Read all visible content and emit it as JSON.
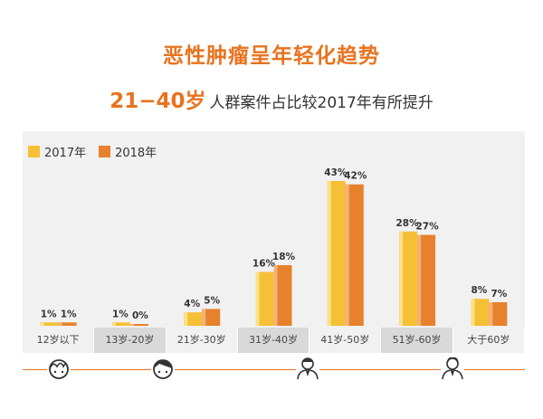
{
  "title": "恶性肿瘤呈年轻化趋势",
  "subtitle": {
    "highlight": "21−40岁",
    "text": "人群案件占比较2017年有所提升"
  },
  "legend": [
    {
      "label": "2017年",
      "color": "#f5c036"
    },
    {
      "label": "2018年",
      "color": "#e8812c"
    }
  ],
  "icons": [
    "child-face-icon",
    "young-face-icon",
    "adult-suit-icon",
    "senior-suit-icon"
  ],
  "chart_data": {
    "type": "bar",
    "categories": [
      "12岁以下",
      "13岁-20岁",
      "21岁-30岁",
      "31岁-40岁",
      "41岁-50岁",
      "51岁-60岁",
      "大于60岁"
    ],
    "series": [
      {
        "name": "2017年",
        "values": [
          1,
          1,
          4,
          16,
          43,
          28,
          8
        ],
        "labels": [
          "1%",
          "1%",
          "4%",
          "16%",
          "43%",
          "28%",
          "8%"
        ],
        "color": "#f5c036"
      },
      {
        "name": "2018年",
        "values": [
          1,
          0,
          5,
          18,
          42,
          27,
          7
        ],
        "labels": [
          "1%",
          "0%",
          "5%",
          "18%",
          "42%",
          "27%",
          "7%"
        ],
        "color": "#e8812c"
      }
    ],
    "ylim": [
      0,
      45
    ],
    "grid": false,
    "legend_position": "top-left"
  }
}
